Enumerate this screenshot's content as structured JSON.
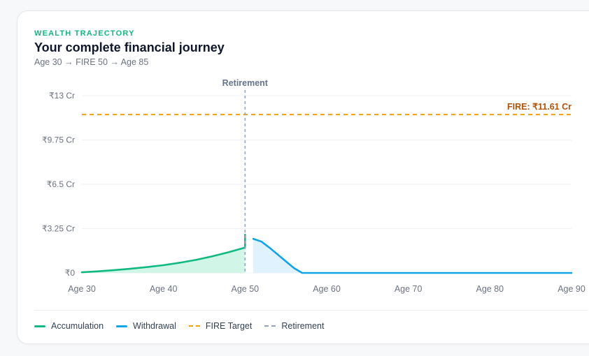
{
  "header": {
    "eyebrow": "WEALTH TRAJECTORY",
    "title": "Your complete financial journey",
    "subtitle": "Age 30 → FIRE 50 → Age 85"
  },
  "legend": {
    "items": [
      {
        "label": "Accumulation",
        "style": "solid",
        "color": "#10b981"
      },
      {
        "label": "Withdrawal",
        "style": "solid",
        "color": "#0ea5e9"
      },
      {
        "label": "FIRE Target",
        "style": "dashed",
        "color": "#f59e0b"
      },
      {
        "label": "Retirement",
        "style": "dashed",
        "color": "#94a3b8"
      }
    ]
  },
  "chart_data": {
    "type": "area",
    "x_tick_labels": [
      "Age 30",
      "Age 40",
      "Age 50",
      "Age 60",
      "Age 70",
      "Age 80",
      "Age 90"
    ],
    "x_ticks": [
      30,
      40,
      50,
      60,
      70,
      80,
      90
    ],
    "y_tick_labels": [
      "₹0",
      "₹3.25 Cr",
      "₹6.5 Cr",
      "₹9.75 Cr",
      "₹13 Cr"
    ],
    "y_ticks": [
      0,
      3.25,
      6.5,
      9.75,
      13
    ],
    "xlim": [
      30,
      90
    ],
    "ylim": [
      0,
      13
    ],
    "grid": "horizontal",
    "legend_position": "bottom-left",
    "series": [
      {
        "name": "Accumulation",
        "color": "#10b981",
        "fill": "#d1f5e6",
        "points": [
          [
            30,
            0.05
          ],
          [
            32,
            0.12
          ],
          [
            34,
            0.21
          ],
          [
            36,
            0.31
          ],
          [
            38,
            0.43
          ],
          [
            40,
            0.57
          ],
          [
            42,
            0.75
          ],
          [
            44,
            0.96
          ],
          [
            46,
            1.22
          ],
          [
            48,
            1.52
          ],
          [
            50,
            1.86
          ],
          [
            50,
            2.8
          ]
        ]
      },
      {
        "name": "Withdrawal",
        "color": "#0ea5e9",
        "fill": "#e0f2fe",
        "points": [
          [
            51,
            2.5
          ],
          [
            52,
            2.3
          ],
          [
            53,
            1.85
          ],
          [
            54,
            1.35
          ],
          [
            55,
            0.85
          ],
          [
            56,
            0.35
          ],
          [
            57,
            0.0
          ],
          [
            60,
            0
          ],
          [
            65,
            0
          ],
          [
            70,
            0
          ],
          [
            75,
            0
          ],
          [
            80,
            0
          ],
          [
            85,
            0
          ],
          [
            90,
            0
          ]
        ]
      }
    ],
    "reference_lines": {
      "fire_target": {
        "value": 11.61,
        "label": "FIRE: ₹11.61 Cr",
        "color": "#f59e0b",
        "label_color": "#b45309"
      },
      "retirement": {
        "value": 50,
        "label": "Retirement",
        "color": "#94a3b8"
      }
    }
  }
}
